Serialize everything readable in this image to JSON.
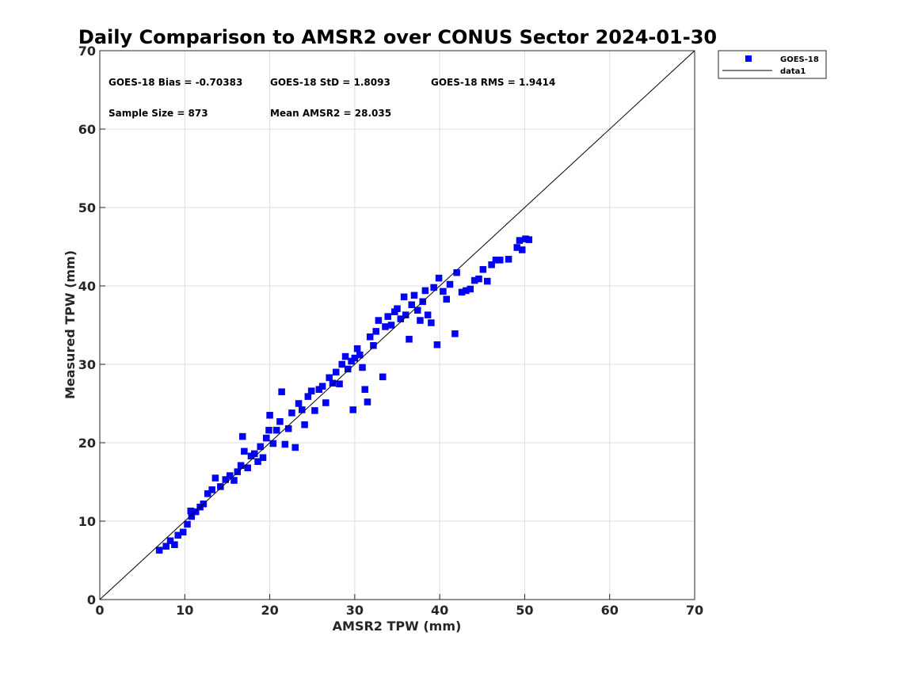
{
  "chart_data": {
    "type": "scatter",
    "title": "Daily Comparison to AMSR2 over CONUS Sector 2024-01-30",
    "xlabel": "AMSR2 TPW (mm)",
    "ylabel": "Measured TPW (mm)",
    "xlim": [
      0,
      70
    ],
    "ylim": [
      0,
      70
    ],
    "xticks": [
      "0",
      "10",
      "20",
      "30",
      "40",
      "50",
      "60",
      "70"
    ],
    "yticks": [
      "0",
      "10",
      "20",
      "30",
      "40",
      "50",
      "60",
      "70"
    ],
    "grid": true,
    "legend_position": "outside-top-right",
    "stats": [
      "GOES-18 Bias = -0.70383",
      "GOES-18 StD = 1.8093",
      "GOES-18 RMS = 1.9414",
      "Sample Size = 873",
      "Mean AMSR2 = 28.035"
    ],
    "series": [
      {
        "name": "GOES-18",
        "kind": "scatter",
        "marker": "square",
        "color": "#0000ff",
        "sample_size": 873,
        "points": [
          [
            7.0,
            6.3
          ],
          [
            7.8,
            6.8
          ],
          [
            8.3,
            7.5
          ],
          [
            8.8,
            7.0
          ],
          [
            9.2,
            8.2
          ],
          [
            9.8,
            8.6
          ],
          [
            10.3,
            9.6
          ],
          [
            10.8,
            10.6
          ],
          [
            10.7,
            11.3
          ],
          [
            11.3,
            11.2
          ],
          [
            11.8,
            11.8
          ],
          [
            12.2,
            12.2
          ],
          [
            12.7,
            13.5
          ],
          [
            13.2,
            14.0
          ],
          [
            13.6,
            15.5
          ],
          [
            14.2,
            14.4
          ],
          [
            14.8,
            15.3
          ],
          [
            15.3,
            15.8
          ],
          [
            15.8,
            15.2
          ],
          [
            16.2,
            16.3
          ],
          [
            16.6,
            17.1
          ],
          [
            16.8,
            20.8
          ],
          [
            17.0,
            18.9
          ],
          [
            17.4,
            16.8
          ],
          [
            17.8,
            18.3
          ],
          [
            18.2,
            18.6
          ],
          [
            18.6,
            17.6
          ],
          [
            18.9,
            19.5
          ],
          [
            19.2,
            18.1
          ],
          [
            19.6,
            20.6
          ],
          [
            19.9,
            21.6
          ],
          [
            20.0,
            23.5
          ],
          [
            20.4,
            19.9
          ],
          [
            20.8,
            21.6
          ],
          [
            21.2,
            22.7
          ],
          [
            21.4,
            26.5
          ],
          [
            21.8,
            19.8
          ],
          [
            22.2,
            21.8
          ],
          [
            22.6,
            23.8
          ],
          [
            23.0,
            19.4
          ],
          [
            23.4,
            25.0
          ],
          [
            23.8,
            24.2
          ],
          [
            24.1,
            22.3
          ],
          [
            24.5,
            25.9
          ],
          [
            24.9,
            26.6
          ],
          [
            25.3,
            24.1
          ],
          [
            25.8,
            26.8
          ],
          [
            26.2,
            27.2
          ],
          [
            26.6,
            25.1
          ],
          [
            27.0,
            28.3
          ],
          [
            27.4,
            27.6
          ],
          [
            27.8,
            29.0
          ],
          [
            28.2,
            27.5
          ],
          [
            28.5,
            30.0
          ],
          [
            28.9,
            31.0
          ],
          [
            29.2,
            29.4
          ],
          [
            29.6,
            30.4
          ],
          [
            30.0,
            30.8
          ],
          [
            29.8,
            24.2
          ],
          [
            30.3,
            32.0
          ],
          [
            30.6,
            31.2
          ],
          [
            30.9,
            29.6
          ],
          [
            31.2,
            26.8
          ],
          [
            31.5,
            25.2
          ],
          [
            31.8,
            33.5
          ],
          [
            32.2,
            32.4
          ],
          [
            32.5,
            34.2
          ],
          [
            32.8,
            35.6
          ],
          [
            33.3,
            28.4
          ],
          [
            33.6,
            34.8
          ],
          [
            33.9,
            36.1
          ],
          [
            34.3,
            35.0
          ],
          [
            34.7,
            36.7
          ],
          [
            35.0,
            37.1
          ],
          [
            35.4,
            35.8
          ],
          [
            35.8,
            38.6
          ],
          [
            36.0,
            36.3
          ],
          [
            36.4,
            33.2
          ],
          [
            36.7,
            37.6
          ],
          [
            37.0,
            38.8
          ],
          [
            37.4,
            36.9
          ],
          [
            37.7,
            35.6
          ],
          [
            38.0,
            38.0
          ],
          [
            38.3,
            39.4
          ],
          [
            38.6,
            36.3
          ],
          [
            39.0,
            35.3
          ],
          [
            39.3,
            39.8
          ],
          [
            39.7,
            32.5
          ],
          [
            39.9,
            41.0
          ],
          [
            40.4,
            39.3
          ],
          [
            40.8,
            38.3
          ],
          [
            41.2,
            40.2
          ],
          [
            41.8,
            33.9
          ],
          [
            42.0,
            41.7
          ],
          [
            42.6,
            39.2
          ],
          [
            43.1,
            39.4
          ],
          [
            43.6,
            39.6
          ],
          [
            44.1,
            40.7
          ],
          [
            44.6,
            40.9
          ],
          [
            45.1,
            42.1
          ],
          [
            45.6,
            40.6
          ],
          [
            46.1,
            42.7
          ],
          [
            46.6,
            43.3
          ],
          [
            47.1,
            43.3
          ],
          [
            48.1,
            43.4
          ],
          [
            49.1,
            44.9
          ],
          [
            49.4,
            45.8
          ],
          [
            49.7,
            44.6
          ],
          [
            50.1,
            46.0
          ],
          [
            50.5,
            45.9
          ]
        ]
      },
      {
        "name": "data1",
        "kind": "line",
        "color": "#000000",
        "x": [
          0,
          70
        ],
        "y": [
          0,
          70
        ]
      }
    ]
  }
}
